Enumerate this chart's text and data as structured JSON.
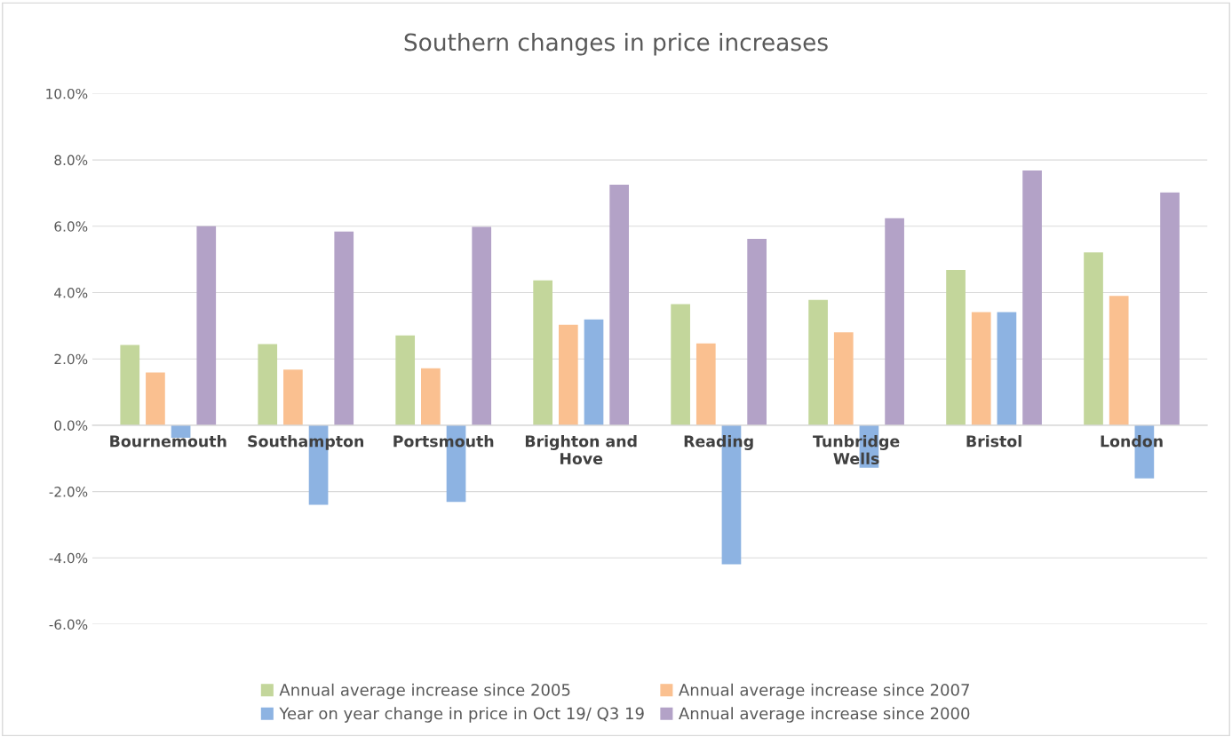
{
  "chart_data": {
    "type": "bar",
    "title": "Southern changes in price increases",
    "categories": [
      "Bournemouth",
      "Southampton",
      "Portsmouth",
      "Brighton and\nHove",
      "Reading",
      "Tunbridge\nWells",
      "Bristol",
      "London"
    ],
    "series": [
      {
        "name": "Annual average increase since 2005",
        "color": "#c3d69b",
        "values": [
          2.42,
          2.45,
          2.71,
          4.37,
          3.65,
          3.78,
          4.68,
          5.21
        ]
      },
      {
        "name": "Annual average increase since 2007",
        "color": "#fac090",
        "values": [
          1.59,
          1.68,
          1.72,
          3.03,
          2.47,
          2.8,
          3.41,
          3.9
        ]
      },
      {
        "name": "Year on year change in price in Oct 19/ Q3 19",
        "color": "#8db3e2",
        "values": [
          -0.38,
          -2.4,
          -2.31,
          3.19,
          -4.19,
          -1.28,
          3.41,
          -1.6
        ]
      },
      {
        "name": "Annual average increase since 2000",
        "color": "#b3a2c7",
        "values": [
          6.0,
          5.84,
          5.98,
          7.25,
          5.62,
          6.24,
          7.68,
          7.02
        ]
      }
    ],
    "ylim": [
      -6,
      10
    ],
    "yticks": [
      {
        "value": -6,
        "label": "-6.0%"
      },
      {
        "value": -4,
        "label": "-4.0%"
      },
      {
        "value": -2,
        "label": "-2.0%"
      },
      {
        "value": 0,
        "label": "0.0%"
      },
      {
        "value": 2,
        "label": "2.0%"
      },
      {
        "value": 4,
        "label": "4.0%"
      },
      {
        "value": 6,
        "label": "6.0%"
      },
      {
        "value": 8,
        "label": "8.0%"
      },
      {
        "value": 10,
        "label": "10.0%"
      }
    ],
    "grid": "y",
    "legend": "bottom"
  }
}
